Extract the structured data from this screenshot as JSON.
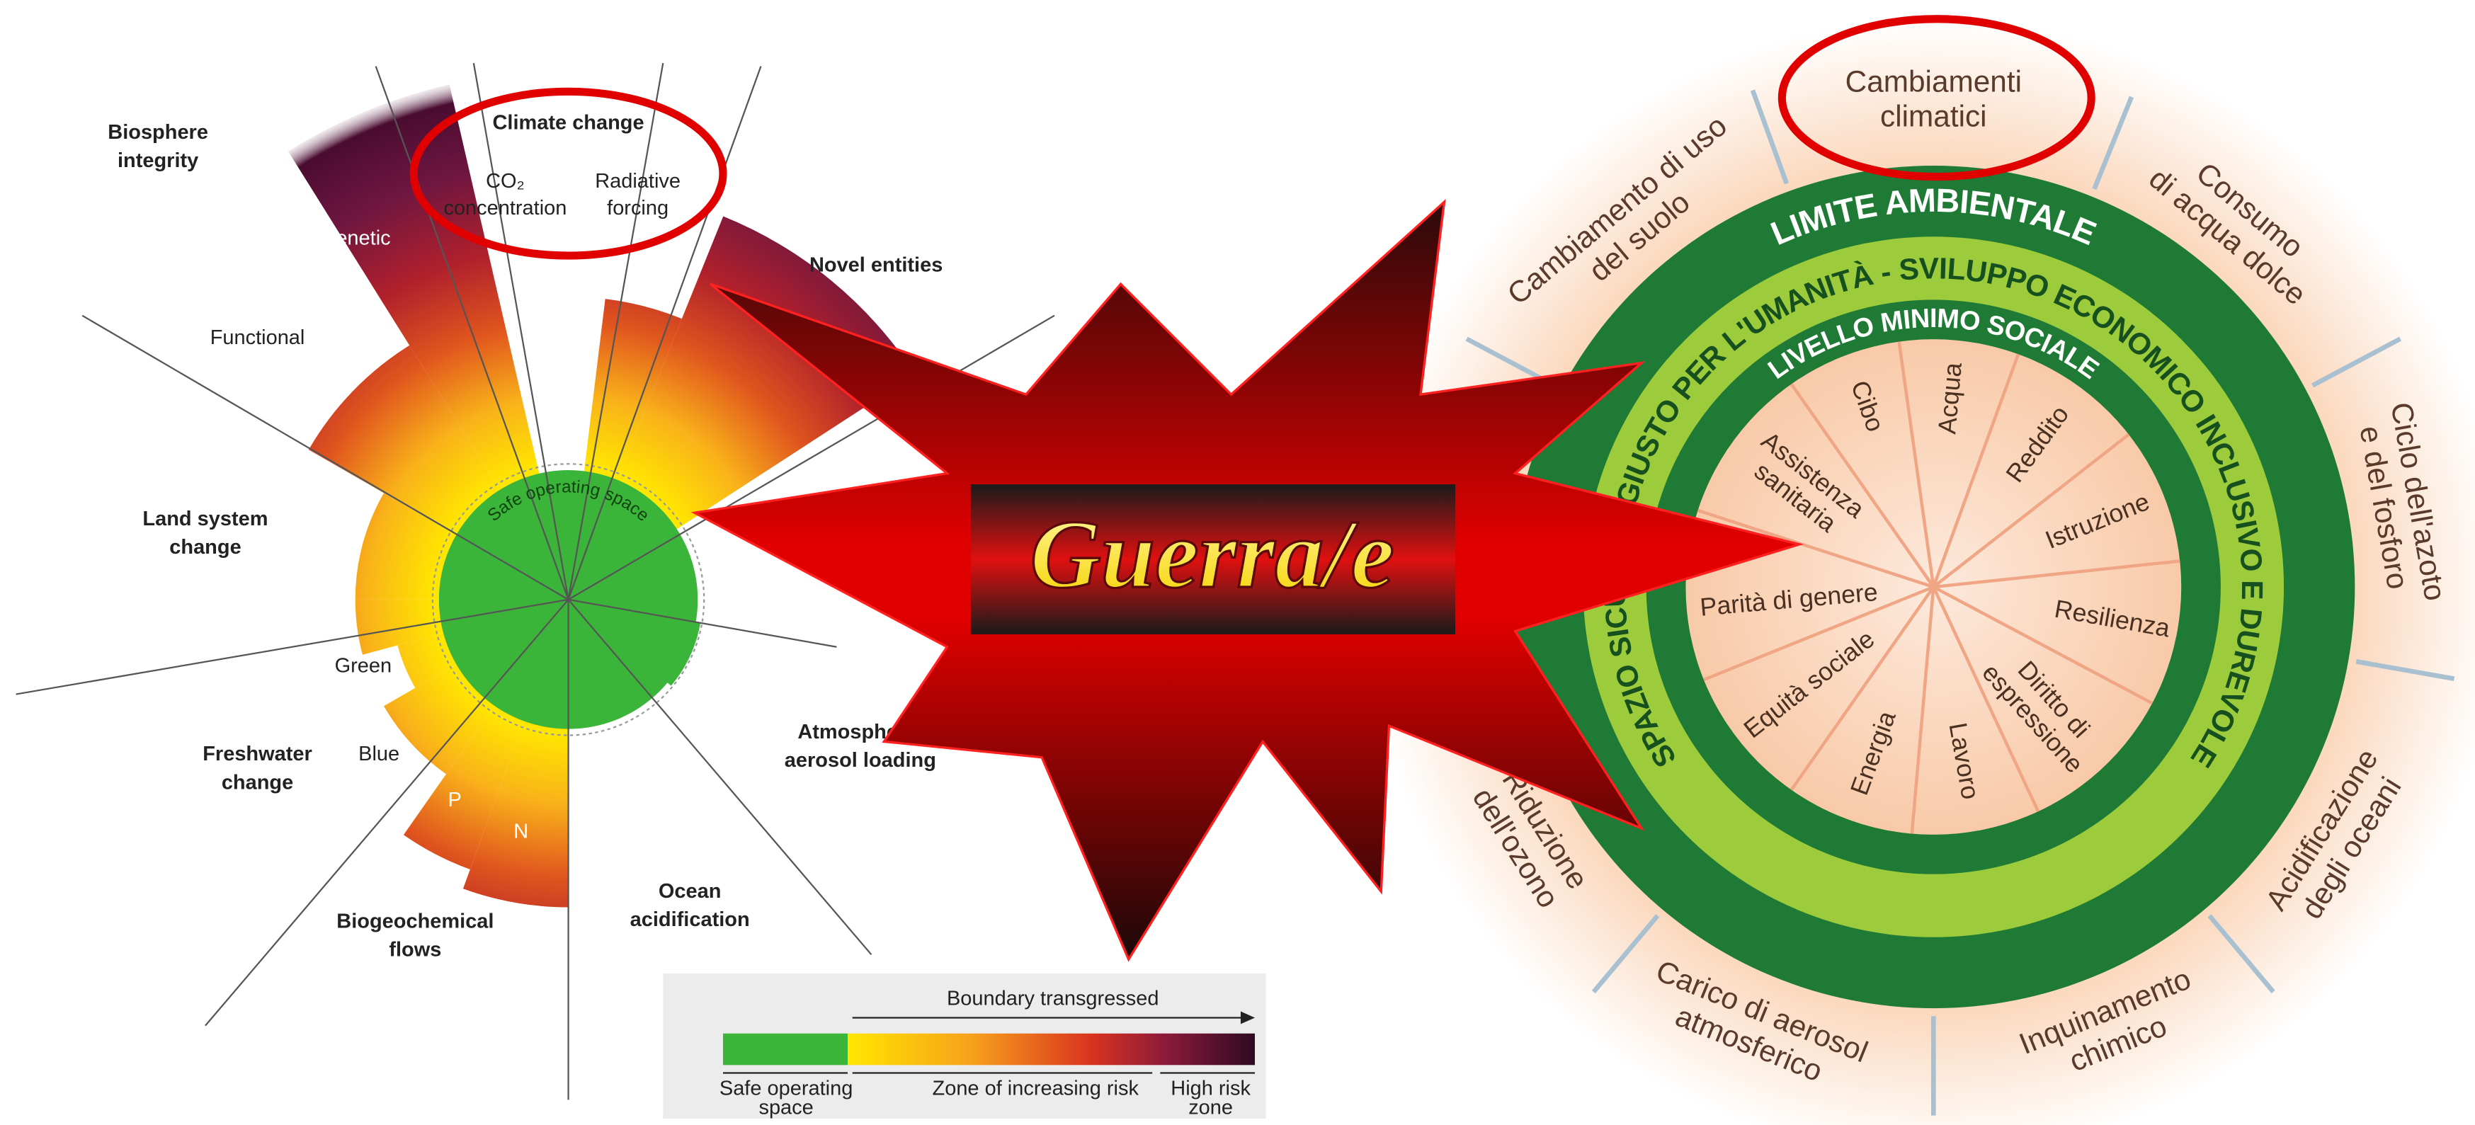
{
  "planetary_boundaries": {
    "biosphere_integrity": [
      "Biosphere",
      "integrity"
    ],
    "genetic": "Genetic",
    "functional": "Functional",
    "climate_change": "Climate change",
    "co2_concentration": [
      "CO₂",
      "concentration"
    ],
    "radiative_forcing": [
      "Radiative",
      "forcing"
    ],
    "novel_entities": "Novel entities",
    "land_system_change": [
      "Land system",
      "change"
    ],
    "safe_operating_space": "Safe operating space",
    "green": "Green",
    "blue": "Blue",
    "freshwater_change": [
      "Freshwater",
      "change"
    ],
    "p": "P",
    "n": "N",
    "biogeochemical_flows": [
      "Biogeochemical",
      "flows"
    ],
    "ocean_acidification": [
      "Ocean",
      "acidification"
    ],
    "atmospheric_aerosol_loading": [
      "Atmospheric",
      "aerosol loading"
    ]
  },
  "legend": {
    "boundary_transgressed": "Boundary transgressed",
    "safe_operating_space": [
      "Safe operating",
      "space"
    ],
    "zone_of_increasing_risk": "Zone of increasing risk",
    "high_risk_zone": [
      "High risk",
      "zone"
    ]
  },
  "banner": "Guerra/e",
  "doughnut": {
    "highlight": [
      "Cambiamenti",
      "climatici"
    ],
    "outer": [
      [
        "Cambiamento di uso",
        "del suolo"
      ],
      [
        "Consumo",
        "di acqua dolce"
      ],
      [
        "Ciclo dell'azoto",
        "e del fosforo"
      ],
      [
        "Acidificazione",
        "degli oceani"
      ],
      [
        "Inquinamento",
        "chimico"
      ],
      [
        "Carico di aerosol",
        "atmosferico"
      ],
      [
        "Riduzione",
        "dell'ozono"
      ]
    ],
    "ring_outer": "LIMITE AMBIENTALE",
    "ring_middle": "SPAZIO SICURO E GIUSTO PER L'UMANITÀ - SVILUPPO ECONOMICO INCLUSIVO E DUREVOLE",
    "ring_inner": "LIVELLO MINIMO SOCIALE",
    "inner": [
      "Cibo",
      "Acqua",
      "Reddito",
      "Istruzione",
      "Resilienza",
      [
        "Diritto di",
        "espressione"
      ],
      "Lavoro",
      "Energia",
      "Equità sociale",
      "Parità di genere",
      [
        "Assistenza",
        "sanitaria"
      ]
    ]
  }
}
